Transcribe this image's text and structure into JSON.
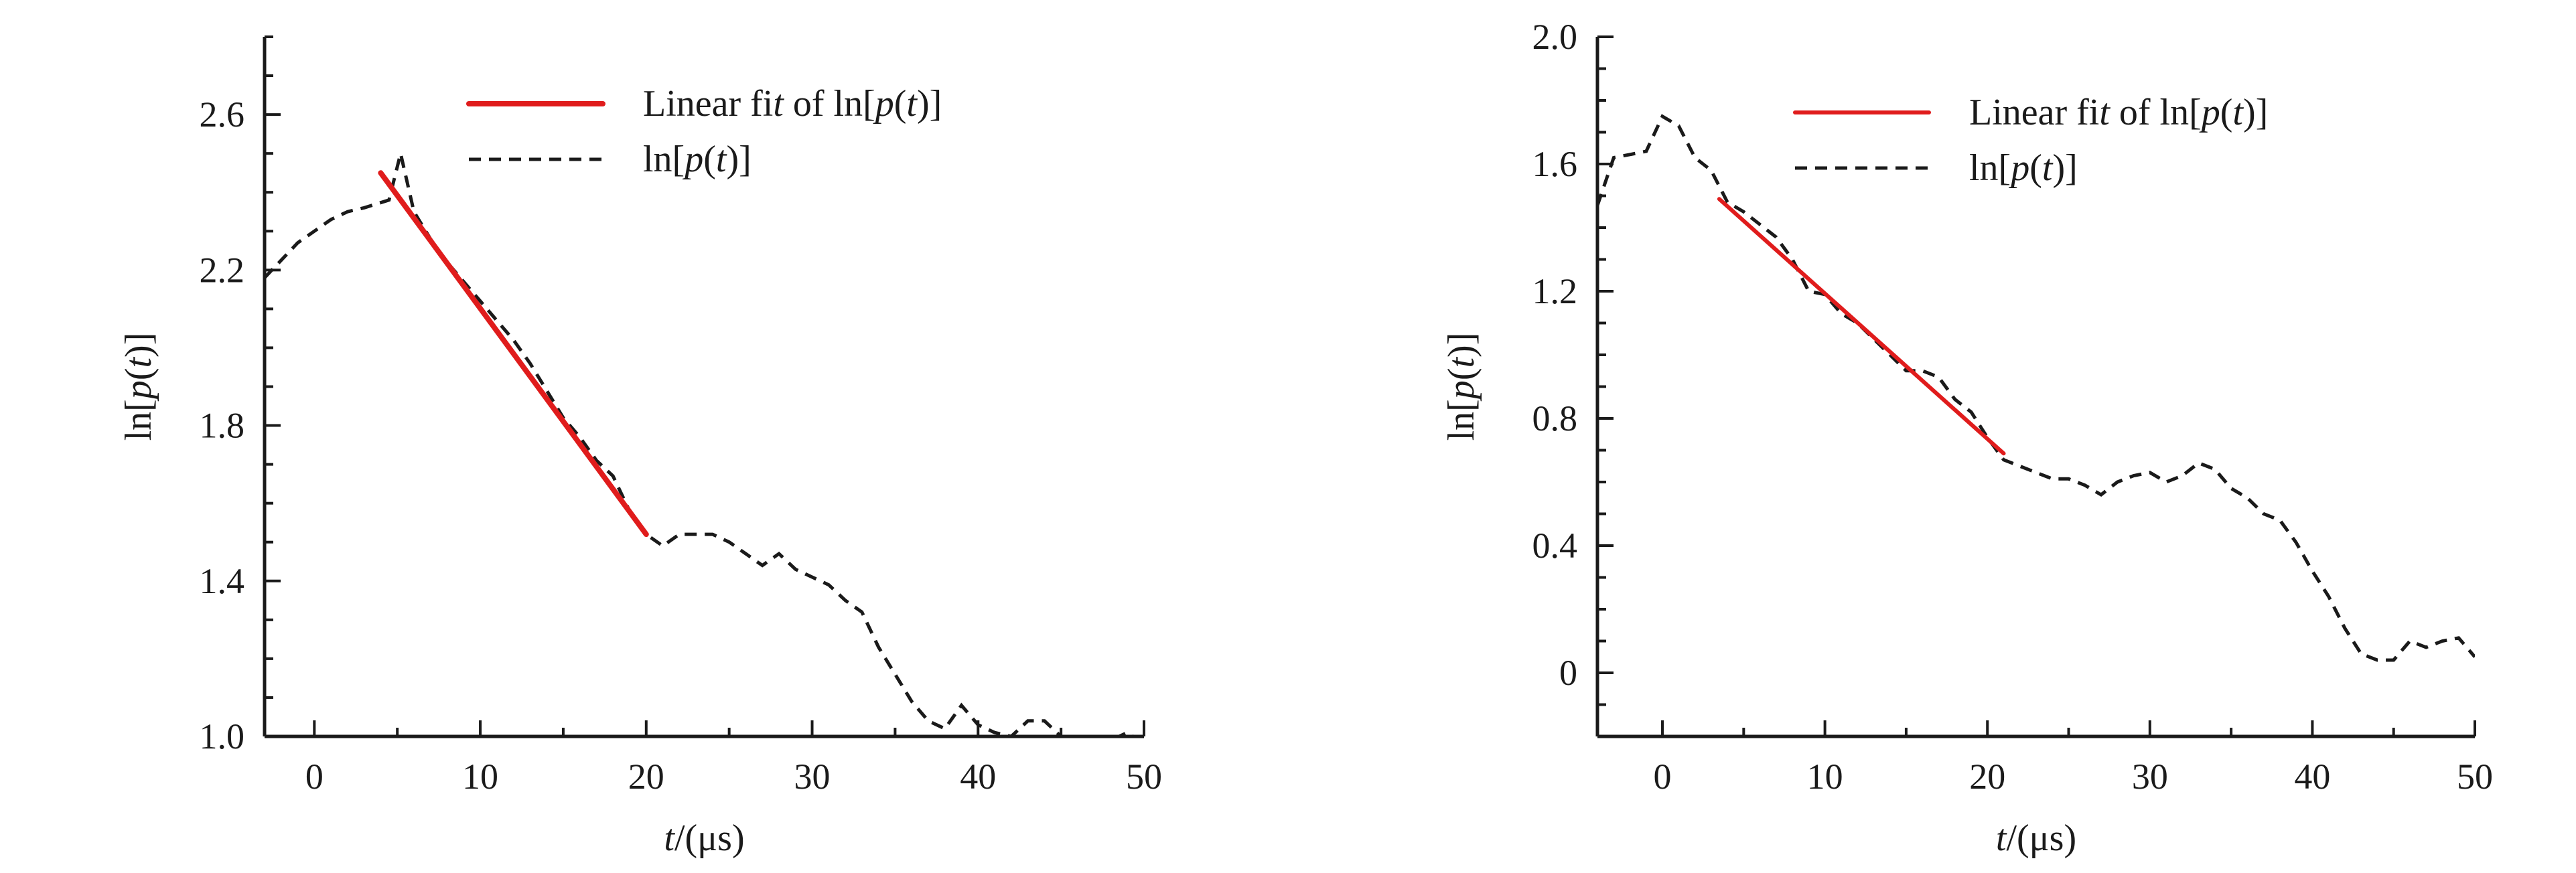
{
  "chart_data": [
    {
      "type": "line",
      "xlim": [
        -3,
        50
      ],
      "ylim": [
        1.0,
        2.8
      ],
      "x_ticks": [
        0,
        10,
        20,
        30,
        40,
        50
      ],
      "x_tick_labels": [
        "0",
        "10",
        "20",
        "30",
        "40",
        "50"
      ],
      "y_ticks": [
        1.0,
        1.4,
        1.8,
        2.2,
        2.6
      ],
      "y_tick_labels": [
        "1.0",
        "1.4",
        "1.8",
        "2.2",
        "2.6"
      ],
      "xlabel": "t/(μs)",
      "ylabel": "ln[p(t)]",
      "legend_position": "top-right",
      "series": [
        {
          "name": "Linear fit of ln[p(t)]",
          "style": "solid",
          "color": "#e01c1c",
          "x": [
            4,
            20
          ],
          "y": [
            2.45,
            1.52
          ]
        },
        {
          "name": "ln[p(t)]",
          "style": "dashed",
          "color": "#1a1a1a",
          "x": [
            -3,
            -1,
            1,
            2,
            3,
            4.5,
            5.2,
            6,
            7,
            8,
            9,
            10,
            11,
            12,
            13,
            14,
            15,
            16,
            17,
            18,
            19,
            20,
            21,
            22,
            23,
            24,
            25,
            26,
            27,
            28,
            29,
            30,
            31,
            32,
            33,
            34,
            35,
            36,
            37,
            38,
            39,
            40,
            41,
            42,
            43,
            44,
            45,
            46,
            47,
            48,
            49,
            50
          ],
          "y": [
            2.18,
            2.27,
            2.33,
            2.35,
            2.36,
            2.38,
            2.5,
            2.35,
            2.28,
            2.22,
            2.17,
            2.12,
            2.07,
            2.02,
            1.96,
            1.89,
            1.82,
            1.77,
            1.71,
            1.67,
            1.58,
            1.52,
            1.49,
            1.52,
            1.52,
            1.52,
            1.5,
            1.47,
            1.44,
            1.47,
            1.43,
            1.41,
            1.39,
            1.35,
            1.32,
            1.23,
            1.16,
            1.09,
            1.04,
            1.02,
            1.08,
            1.03,
            1.01,
            1.0,
            1.04,
            1.04,
            1.0,
            0.99,
            0.98,
            0.99,
            1.01,
            0.98
          ]
        }
      ]
    },
    {
      "type": "line",
      "xlim": [
        -4,
        50
      ],
      "ylim": [
        -0.2,
        2.0
      ],
      "x_ticks": [
        0,
        10,
        20,
        30,
        40,
        50
      ],
      "x_tick_labels": [
        "0",
        "10",
        "20",
        "30",
        "40",
        "50"
      ],
      "y_ticks": [
        0,
        0.4,
        0.8,
        1.2,
        1.6,
        2.0
      ],
      "y_tick_labels": [
        "0",
        "0.4",
        "0.8",
        "1.2",
        "1.6",
        "2.0"
      ],
      "xlabel": "t/(μs)",
      "ylabel": "ln[p(t)]",
      "legend_position": "top-right",
      "series": [
        {
          "name": "Linear fit of ln[p(t)]",
          "style": "solid",
          "color": "#e01c1c",
          "x": [
            3.5,
            21
          ],
          "y": [
            1.49,
            0.69
          ]
        },
        {
          "name": "ln[p(t)]",
          "style": "dashed",
          "color": "#1a1a1a",
          "x": [
            -4,
            -3,
            -2,
            -1,
            0,
            1,
            2,
            3,
            4,
            5,
            6,
            7,
            8,
            9,
            10,
            11,
            12,
            13,
            14,
            15,
            16,
            17,
            18,
            19,
            20,
            21,
            22,
            23,
            24,
            25,
            26,
            27,
            28,
            29,
            30,
            31,
            32,
            33,
            34,
            35,
            36,
            37,
            38,
            39,
            40,
            41,
            42,
            43,
            44,
            45,
            46,
            47,
            48,
            49,
            50
          ],
          "y": [
            1.47,
            1.62,
            1.63,
            1.64,
            1.75,
            1.72,
            1.62,
            1.58,
            1.48,
            1.45,
            1.41,
            1.37,
            1.3,
            1.2,
            1.19,
            1.13,
            1.1,
            1.05,
            1.0,
            0.95,
            0.95,
            0.93,
            0.86,
            0.82,
            0.74,
            0.67,
            0.65,
            0.63,
            0.61,
            0.61,
            0.59,
            0.56,
            0.6,
            0.62,
            0.63,
            0.6,
            0.62,
            0.66,
            0.64,
            0.58,
            0.55,
            0.5,
            0.48,
            0.41,
            0.32,
            0.24,
            0.14,
            0.06,
            0.04,
            0.04,
            0.1,
            0.08,
            0.1,
            0.11,
            0.05
          ]
        }
      ]
    }
  ]
}
